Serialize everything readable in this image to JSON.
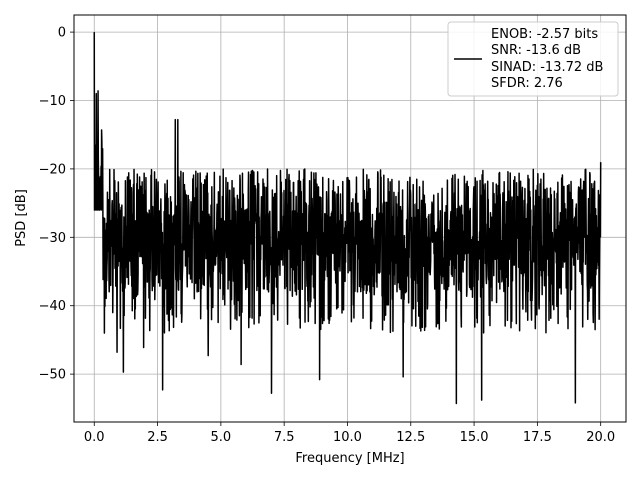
{
  "chart_data": {
    "type": "line",
    "title": "",
    "xlabel": "Frequency [MHz]",
    "ylabel": "PSD [dB]",
    "xlim": [
      -0.8,
      21.0
    ],
    "ylim": [
      -57,
      2.5
    ],
    "x_ticks": [
      0.0,
      2.5,
      5.0,
      7.5,
      10.0,
      12.5,
      15.0,
      17.5,
      20.0
    ],
    "x_tick_labels": [
      "0.0",
      "2.5",
      "5.0",
      "7.5",
      "10.0",
      "12.5",
      "15.0",
      "17.5",
      "20.0"
    ],
    "y_ticks": [
      0,
      -10,
      -20,
      -30,
      -40,
      -50
    ],
    "y_tick_labels": [
      "0",
      "−10",
      "−20",
      "−30",
      "−40",
      "−50"
    ],
    "grid": true,
    "legend_position": "top-right",
    "legend_lines": [
      "ENOB: -2.57 bits",
      "SNR: -13.6 dB",
      "SINAD: -13.72 dB",
      "SFDR: 2.76"
    ],
    "series": [
      {
        "color": "#000000",
        "x_range": [
          0.0,
          20.0
        ],
        "sample_count": 2000,
        "noise_floor_mean": -28,
        "peak_db": 0.0,
        "min_db": -54.3,
        "key_points": [
          {
            "x": 0.0,
            "y": 0.0
          },
          {
            "x": 0.02,
            "y": -16.5
          },
          {
            "x": 0.08,
            "y": -9.0
          },
          {
            "x": 0.15,
            "y": -8.6
          },
          {
            "x": 0.4,
            "y": -44.0
          },
          {
            "x": 0.9,
            "y": -46.8
          },
          {
            "x": 1.15,
            "y": -49.7
          },
          {
            "x": 1.95,
            "y": -46.1
          },
          {
            "x": 2.7,
            "y": -52.3
          },
          {
            "x": 3.2,
            "y": -12.8
          },
          {
            "x": 3.3,
            "y": -12.8
          },
          {
            "x": 4.5,
            "y": -47.3
          },
          {
            "x": 5.8,
            "y": -48.6
          },
          {
            "x": 7.0,
            "y": -52.8
          },
          {
            "x": 8.9,
            "y": -50.8
          },
          {
            "x": 12.2,
            "y": -50.4
          },
          {
            "x": 14.3,
            "y": -54.3
          },
          {
            "x": 15.3,
            "y": -53.8
          },
          {
            "x": 19.0,
            "y": -54.2
          },
          {
            "x": 20.0,
            "y": -19.0
          }
        ]
      }
    ]
  }
}
